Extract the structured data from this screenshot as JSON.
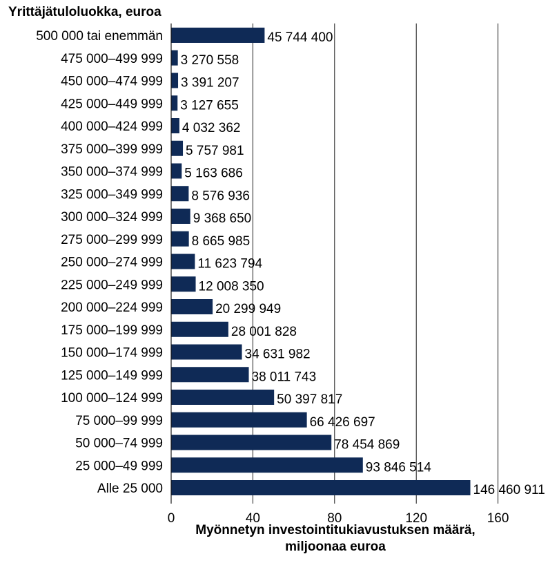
{
  "chart_data": {
    "type": "bar",
    "orientation": "horizontal",
    "title": "",
    "ylabel": "Yrittäjätuloluokka, euroa",
    "xlabel_lines": [
      "Myönnetyn investointitukiavustuksen määrä,",
      "miljoonaa euroa"
    ],
    "xlim": [
      0,
      160
    ],
    "xticks": [
      0,
      40,
      80,
      120,
      160
    ],
    "grid": "vertical",
    "bar_color": "#0f2a56",
    "categories": [
      "500 000 tai enemmän",
      "475 000–499 999",
      "450 000–474 999",
      "425 000–449 999",
      "400 000–424 999",
      "375 000–399 999",
      "350 000–374 999",
      "325 000–349 999",
      "300 000–324 999",
      "275 000–299 999",
      "250 000–274 999",
      "225 000–249 999",
      "200 000–224 999",
      "175 000–199 999",
      "150 000–174 999",
      "125 000–149 999",
      "100 000–124 999",
      "75 000–99 999",
      "50 000–74 999",
      "25 000–49 999",
      "Alle 25 000"
    ],
    "values": [
      45.7444,
      3.270558,
      3.391207,
      3.127655,
      4.032362,
      5.757981,
      5.163686,
      8.576936,
      9.36865,
      8.665985,
      11.623794,
      12.00835,
      20.299949,
      28.001828,
      34.631982,
      38.011743,
      50.397817,
      66.426697,
      78.454869,
      93.846514,
      146.460911
    ],
    "value_labels": [
      "45 744 400",
      "3 270 558",
      "3 391 207",
      "3 127 655",
      "4 032 362",
      "5 757 981",
      "5 163 686",
      "8 576 936",
      "9 368 650",
      "8 665 985",
      "11 623 794",
      "12 008 350",
      "20 299 949",
      "28 001 828",
      "34 631 982",
      "38 011 743",
      "50 397 817",
      "66 426 697",
      "78 454 869",
      "93 846 514",
      "146 460 911"
    ]
  }
}
